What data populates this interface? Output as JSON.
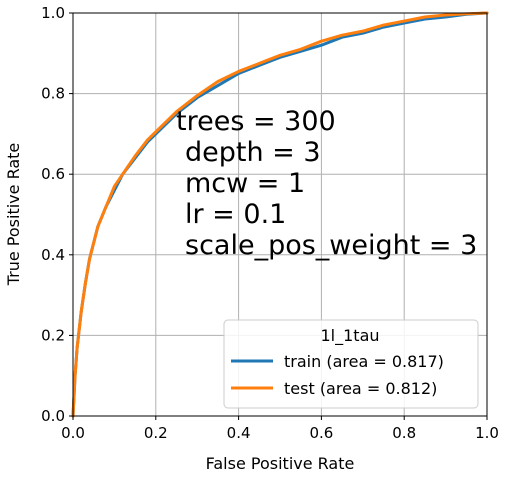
{
  "chart_data": {
    "type": "line",
    "xlabel": "False Positive Rate",
    "ylabel": "True Positive Rate",
    "xlim": [
      0.0,
      1.0
    ],
    "ylim": [
      0.0,
      1.0
    ],
    "xticks": [
      "0.0",
      "0.2",
      "0.4",
      "0.6",
      "0.8",
      "1.0"
    ],
    "yticks": [
      "0.0",
      "0.2",
      "0.4",
      "0.6",
      "0.8",
      "1.0"
    ],
    "grid": true,
    "annotation": [
      "trees = 300",
      "depth = 3",
      "mcw = 1",
      "lr = 0.1",
      "scale_pos_weight = 3"
    ],
    "legend": {
      "title": "1l_1tau",
      "placement": "lower-right"
    },
    "series": [
      {
        "name": "train (area = 0.817)",
        "color": "#1f77b4",
        "x": [
          0.0,
          0.005,
          0.01,
          0.02,
          0.03,
          0.04,
          0.05,
          0.06,
          0.08,
          0.1,
          0.12,
          0.15,
          0.18,
          0.2,
          0.25,
          0.3,
          0.35,
          0.4,
          0.45,
          0.5,
          0.55,
          0.6,
          0.65,
          0.7,
          0.75,
          0.8,
          0.85,
          0.9,
          0.95,
          1.0
        ],
        "y": [
          0.0,
          0.1,
          0.17,
          0.26,
          0.33,
          0.39,
          0.43,
          0.47,
          0.52,
          0.56,
          0.6,
          0.64,
          0.68,
          0.7,
          0.75,
          0.79,
          0.82,
          0.85,
          0.87,
          0.89,
          0.905,
          0.92,
          0.94,
          0.95,
          0.965,
          0.975,
          0.985,
          0.99,
          0.997,
          1.0
        ]
      },
      {
        "name": "test (area = 0.812)",
        "color": "#ff7f0e",
        "x": [
          0.0,
          0.005,
          0.01,
          0.02,
          0.03,
          0.04,
          0.05,
          0.06,
          0.08,
          0.1,
          0.12,
          0.15,
          0.18,
          0.2,
          0.25,
          0.3,
          0.35,
          0.4,
          0.45,
          0.5,
          0.55,
          0.6,
          0.65,
          0.7,
          0.75,
          0.8,
          0.85,
          0.9,
          0.95,
          1.0
        ],
        "y": [
          0.0,
          0.1,
          0.17,
          0.26,
          0.33,
          0.39,
          0.43,
          0.47,
          0.52,
          0.57,
          0.6,
          0.645,
          0.685,
          0.705,
          0.755,
          0.795,
          0.83,
          0.855,
          0.875,
          0.895,
          0.91,
          0.93,
          0.945,
          0.955,
          0.97,
          0.98,
          0.99,
          0.995,
          0.998,
          1.0
        ]
      }
    ]
  }
}
